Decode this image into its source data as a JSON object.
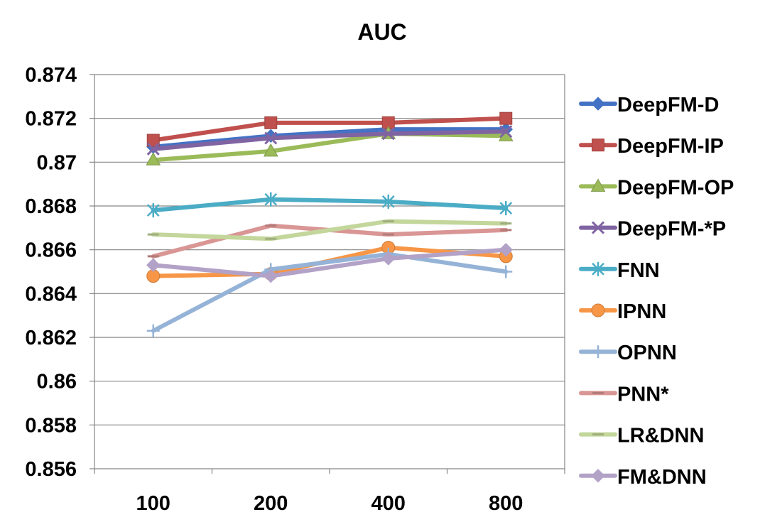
{
  "chart_data": {
    "type": "line",
    "title": "AUC",
    "xlabel": "",
    "ylabel": "",
    "categories": [
      "100",
      "200",
      "400",
      "800"
    ],
    "ylim": [
      0.856,
      0.874
    ],
    "y_ticks": [
      "0.874",
      "0.872",
      "0.87",
      "0.868",
      "0.866",
      "0.864",
      "0.862",
      "0.86",
      "0.858",
      "0.856"
    ],
    "y_tick_values": [
      0.874,
      0.872,
      0.87,
      0.868,
      0.866,
      0.864,
      0.862,
      0.86,
      0.858,
      0.856
    ],
    "grid": true,
    "legend_position": "right",
    "series": [
      {
        "name": "DeepFM-D",
        "values": [
          0.8707,
          0.8712,
          0.8715,
          0.8715
        ],
        "color": "#4472C4",
        "marker": "diamond"
      },
      {
        "name": "DeepFM-IP",
        "values": [
          0.871,
          0.8718,
          0.8718,
          0.872
        ],
        "color": "#C0504D",
        "marker": "square"
      },
      {
        "name": "DeepFM-OP",
        "values": [
          0.8701,
          0.8705,
          0.8713,
          0.8712
        ],
        "color": "#9BBB59",
        "marker": "triangle"
      },
      {
        "name": "DeepFM-*P",
        "values": [
          0.8706,
          0.8711,
          0.8713,
          0.8714
        ],
        "color": "#8064A2",
        "marker": "x"
      },
      {
        "name": "FNN",
        "values": [
          0.8678,
          0.8683,
          0.8682,
          0.8679
        ],
        "color": "#4BACC6",
        "marker": "star"
      },
      {
        "name": "IPNN",
        "values": [
          0.8648,
          0.8649,
          0.8661,
          0.8657
        ],
        "color": "#F79646",
        "marker": "circle"
      },
      {
        "name": "OPNN",
        "values": [
          0.8623,
          0.8651,
          0.8658,
          0.865
        ],
        "color": "#95B3D7",
        "marker": "plus"
      },
      {
        "name": "PNN*",
        "values": [
          0.8657,
          0.8671,
          0.8667,
          0.8669
        ],
        "color": "#D99694",
        "marker": "dash"
      },
      {
        "name": "LR&DNN",
        "values": [
          0.8667,
          0.8665,
          0.8673,
          0.8672
        ],
        "color": "#C3D69B",
        "marker": "dash"
      },
      {
        "name": "FM&DNN",
        "values": [
          0.8653,
          0.8648,
          0.8656,
          0.866
        ],
        "color": "#B3A2C7",
        "marker": "diamond"
      }
    ]
  }
}
